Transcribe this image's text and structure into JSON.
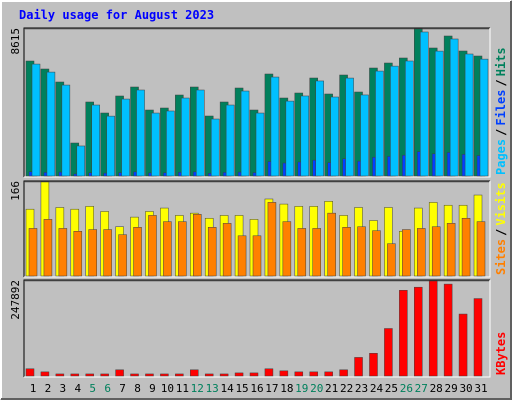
{
  "chart_data": [
    {
      "type": "bar",
      "title": "Daily usage for August 2023",
      "legend_separator": "/",
      "series": [
        {
          "name": "Pages",
          "color": "#00c0ff",
          "values": [
            6560,
            6090,
            5330,
            1760,
            4160,
            3510,
            4510,
            5040,
            3690,
            3810,
            4570,
            5040,
            3340,
            4160,
            4980,
            3690,
            5800,
            4390,
            4690,
            5570,
            4630,
            5740,
            4750,
            6150,
            6440,
            6740,
            8440,
            7320,
            8030,
            7150,
            6850
          ]
        },
        {
          "name": "Files",
          "color": "#0040ff",
          "values": [
            250,
            210,
            230,
            120,
            190,
            170,
            200,
            240,
            180,
            190,
            220,
            240,
            160,
            210,
            230,
            200,
            850,
            760,
            820,
            930,
            790,
            1010,
            870,
            1100,
            1150,
            1220,
            1430,
            1300,
            1380,
            1270,
            1200
          ]
        },
        {
          "name": "Hits",
          "color": "#00805c",
          "values": [
            6739,
            6271,
            5509,
            1934,
            4337,
            3692,
            4689,
            5216,
            3868,
            3985,
            4747,
            5216,
            3516,
            4337,
            5157,
            3868,
            5978,
            4571,
            4864,
            5743,
            4806,
            5919,
            4923,
            6329,
            6622,
            6916,
            8615,
            7502,
            8205,
            7326,
            7033
          ]
        }
      ],
      "ylim": [
        0,
        8615
      ],
      "yticks": [
        8615
      ]
    },
    {
      "type": "bar",
      "legend_separator": "/",
      "series": [
        {
          "name": "Sites",
          "color": "#ff8000",
          "values": [
            84,
            100,
            84,
            79,
            82,
            82,
            73,
            86,
            107,
            96,
            96,
            109,
            86,
            93,
            71,
            71,
            130,
            96,
            84,
            84,
            111,
            86,
            87,
            80,
            57,
            82,
            84,
            87,
            93,
            102,
            96
          ]
        },
        {
          "name": "Visits",
          "color": "#ffff00",
          "values": [
            118,
            166,
            121,
            118,
            123,
            114,
            87,
            104,
            114,
            120,
            107,
            111,
            102,
            107,
            107,
            100,
            136,
            127,
            123,
            123,
            132,
            107,
            121,
            98,
            121,
            79,
            120,
            130,
            125,
            125,
            143
          ]
        }
      ],
      "ylim": [
        0,
        166
      ],
      "yticks": [
        166
      ]
    },
    {
      "type": "bar",
      "categories": [
        "1",
        "2",
        "3",
        "4",
        "5",
        "6",
        "7",
        "8",
        "9",
        "10",
        "11",
        "12",
        "13",
        "14",
        "15",
        "16",
        "17",
        "18",
        "19",
        "20",
        "21",
        "22",
        "23",
        "24",
        "25",
        "26",
        "27",
        "28",
        "29",
        "30",
        "31"
      ],
      "category_colors": [
        "#000000",
        "#000000",
        "#000000",
        "#000000",
        "#00805c",
        "#00805c",
        "#000000",
        "#000000",
        "#000000",
        "#000000",
        "#000000",
        "#00805c",
        "#00805c",
        "#000000",
        "#000000",
        "#000000",
        "#000000",
        "#000000",
        "#00805c",
        "#00805c",
        "#000000",
        "#000000",
        "#000000",
        "#000000",
        "#000000",
        "#00805c",
        "#00805c",
        "#000000",
        "#000000",
        "#000000",
        "#000000"
      ],
      "series": [
        {
          "name": "KBytes",
          "color": "#ff0000",
          "values": [
            18862,
            10778,
            5389,
            5389,
            5389,
            5389,
            16167,
            5389,
            5389,
            5389,
            5389,
            16167,
            5389,
            5389,
            8083,
            8083,
            18862,
            13473,
            10778,
            10778,
            10778,
            16167,
            48500,
            59278,
            123946,
            223642,
            231724,
            247892,
            239808,
            161668,
            202086
          ]
        }
      ],
      "ylim": [
        0,
        247892
      ],
      "yticks": [
        247892
      ]
    }
  ]
}
